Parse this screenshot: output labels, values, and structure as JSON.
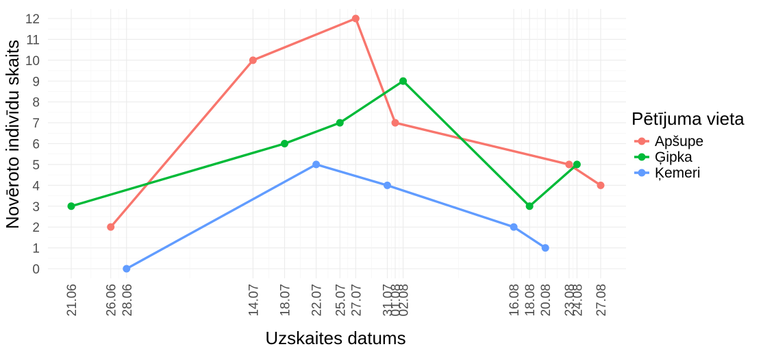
{
  "chart_data": {
    "type": "line",
    "xlabel": "Uzskaites datums",
    "ylabel": "Novēroto indivīdu skaits",
    "ylim": [
      0,
      12
    ],
    "yticks": [
      0,
      1,
      2,
      3,
      4,
      5,
      6,
      7,
      8,
      9,
      10,
      11,
      12
    ],
    "x_ticks": [
      "21.06",
      "26.06",
      "28.06",
      "14.07",
      "18.07",
      "22.07",
      "25.07",
      "27.07",
      "31.07",
      "01.08",
      "02.08",
      "16.08",
      "18.08",
      "20.08",
      "23.08",
      "24.08",
      "27.08"
    ],
    "grid": true,
    "legend": {
      "title": "Pētījuma vieta",
      "position": "right"
    },
    "series": [
      {
        "name": "Apšupe",
        "color": "#F8766D",
        "x": [
          "26.06",
          "14.07",
          "27.07",
          "01.08",
          "23.08",
          "27.08"
        ],
        "y": [
          2,
          10,
          12,
          7,
          5,
          4
        ]
      },
      {
        "name": "Ģipka",
        "color": "#00BA38",
        "x": [
          "21.06",
          "18.07",
          "25.07",
          "02.08",
          "18.08",
          "24.08"
        ],
        "y": [
          3,
          6,
          7,
          9,
          3,
          5
        ]
      },
      {
        "name": "Ķemeri",
        "color": "#619CFF",
        "x": [
          "28.06",
          "22.07",
          "31.07",
          "16.08",
          "20.08"
        ],
        "y": [
          0,
          5,
          4,
          2,
          1
        ]
      }
    ]
  }
}
